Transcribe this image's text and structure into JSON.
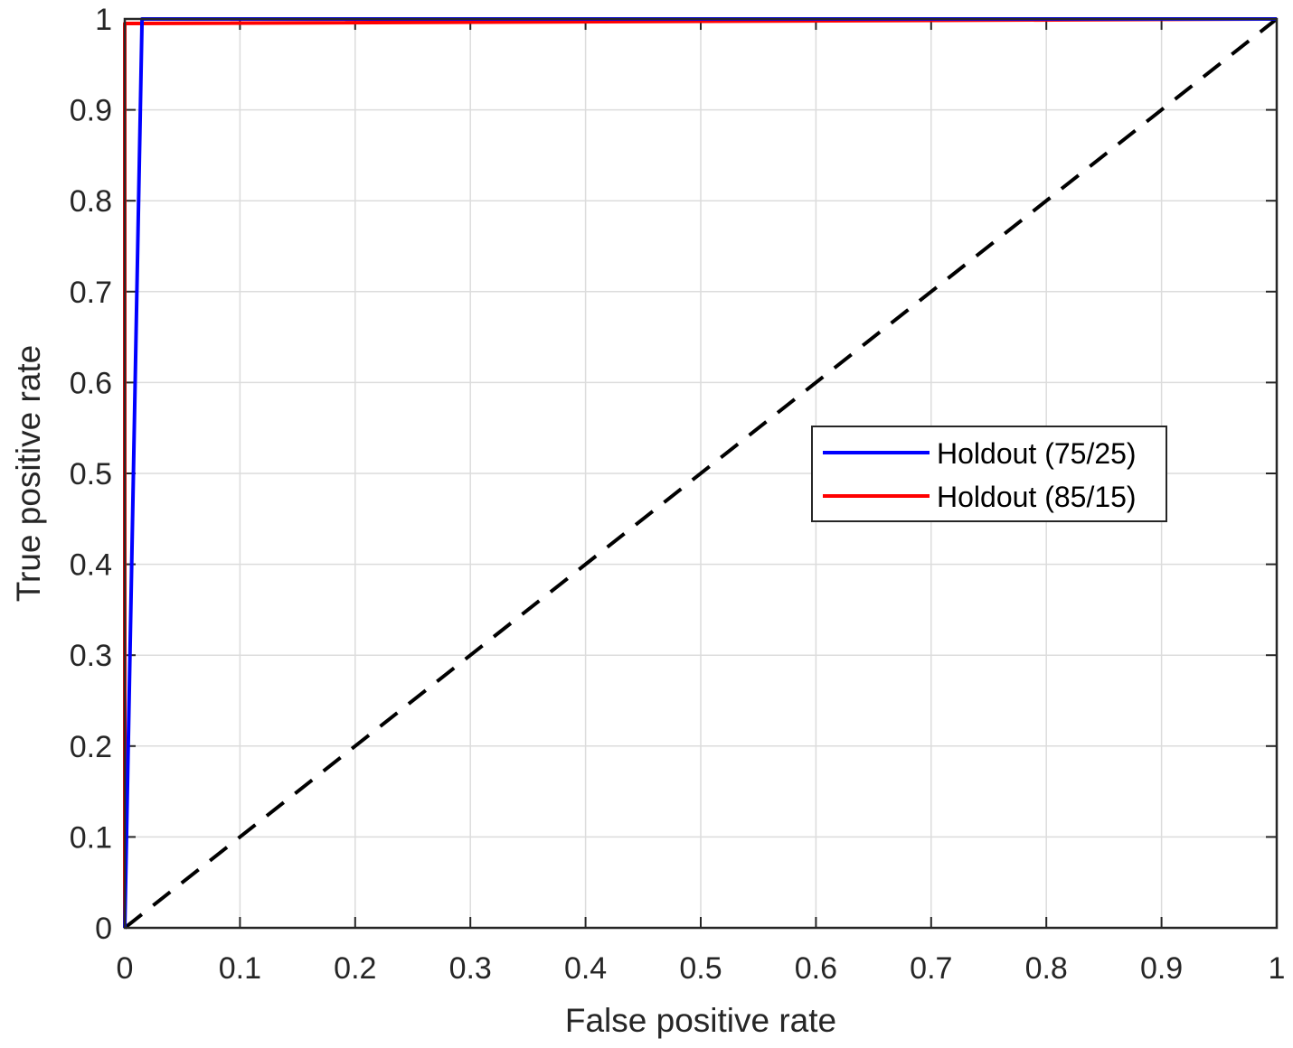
{
  "chart_data": {
    "type": "line",
    "title": "",
    "xlabel": "False positive rate",
    "ylabel": "True positive rate",
    "xlim": [
      0,
      1
    ],
    "ylim": [
      0,
      1
    ],
    "xticks": [
      0,
      0.1,
      0.2,
      0.3,
      0.4,
      0.5,
      0.6,
      0.7,
      0.8,
      0.9,
      1
    ],
    "yticks": [
      0,
      0.1,
      0.2,
      0.3,
      0.4,
      0.5,
      0.6,
      0.7,
      0.8,
      0.9,
      1
    ],
    "xtick_labels": [
      "0",
      "0.1",
      "0.2",
      "0.3",
      "0.4",
      "0.5",
      "0.6",
      "0.7",
      "0.8",
      "0.9",
      "1"
    ],
    "ytick_labels": [
      "0",
      "0.1",
      "0.2",
      "0.3",
      "0.4",
      "0.5",
      "0.6",
      "0.7",
      "0.8",
      "0.9",
      "1"
    ],
    "grid": true,
    "legend_position": "center-right",
    "series": [
      {
        "name": "Holdout (75/25)",
        "color": "#0000ff",
        "x": [
          0,
          0.015,
          1
        ],
        "y": [
          0,
          1,
          1
        ]
      },
      {
        "name": "Holdout (85/15)",
        "color": "#ff0000",
        "x": [
          0,
          0,
          0.003,
          1
        ],
        "y": [
          0,
          0.995,
          0.995,
          1
        ]
      }
    ],
    "reference_line": {
      "style": "dashed",
      "color": "#000000",
      "x": [
        0,
        1
      ],
      "y": [
        0,
        1
      ]
    }
  }
}
